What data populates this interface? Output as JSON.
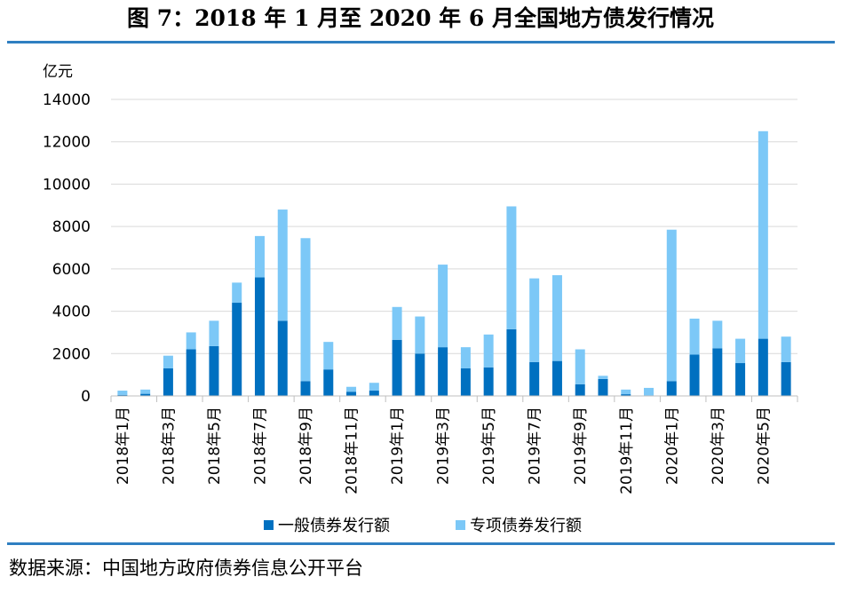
{
  "title": "图 7：2018 年 1 月至 2020 年 6 月全国地方债发行情况",
  "source": "数据来源：中国地方政府债券信息公开平台",
  "colors": {
    "general": "#0070c0",
    "special": "#7cc8f7",
    "rule": "#2f7fc1"
  },
  "chart_data": {
    "type": "bar",
    "stacked": true,
    "ylabel": "亿元",
    "ylim": [
      0,
      14000
    ],
    "yticks": [
      0,
      2000,
      4000,
      6000,
      8000,
      10000,
      12000,
      14000
    ],
    "grid": true,
    "legend_position": "bottom",
    "categories": [
      "2018年1月",
      "2018年2月",
      "2018年3月",
      "2018年4月",
      "2018年5月",
      "2018年6月",
      "2018年7月",
      "2018年8月",
      "2018年9月",
      "2018年10月",
      "2018年11月",
      "2018年12月",
      "2019年1月",
      "2019年2月",
      "2019年3月",
      "2019年4月",
      "2019年5月",
      "2019年6月",
      "2019年7月",
      "2019年8月",
      "2019年9月",
      "2019年10月",
      "2019年11月",
      "2019年12月",
      "2020年1月",
      "2020年2月",
      "2020年3月",
      "2020年4月",
      "2020年5月",
      "2020年6月"
    ],
    "tick_labels": [
      "2018年1月",
      "2018年3月",
      "2018年5月",
      "2018年7月",
      "2018年9月",
      "2018年11月",
      "2019年1月",
      "2019年3月",
      "2019年5月",
      "2019年7月",
      "2019年9月",
      "2019年11月",
      "2020年1月",
      "2020年3月",
      "2020年5月"
    ],
    "series": [
      {
        "name": "一般债券发行额",
        "color": "#0070c0",
        "values": [
          50,
          100,
          1300,
          2200,
          2350,
          4400,
          5600,
          3550,
          700,
          1250,
          200,
          250,
          2650,
          2000,
          2300,
          1300,
          1350,
          3150,
          1600,
          1650,
          550,
          800,
          80,
          0,
          700,
          1950,
          2250,
          1550,
          2700,
          1600
        ]
      },
      {
        "name": "专项债券发行额",
        "color": "#7cc8f7",
        "values": [
          200,
          200,
          600,
          800,
          1200,
          950,
          1950,
          5250,
          6750,
          1300,
          230,
          370,
          1550,
          1750,
          3900,
          1000,
          1550,
          5800,
          3950,
          4050,
          1650,
          150,
          220,
          380,
          7150,
          1700,
          1300,
          1150,
          9800,
          1200
        ]
      }
    ]
  }
}
